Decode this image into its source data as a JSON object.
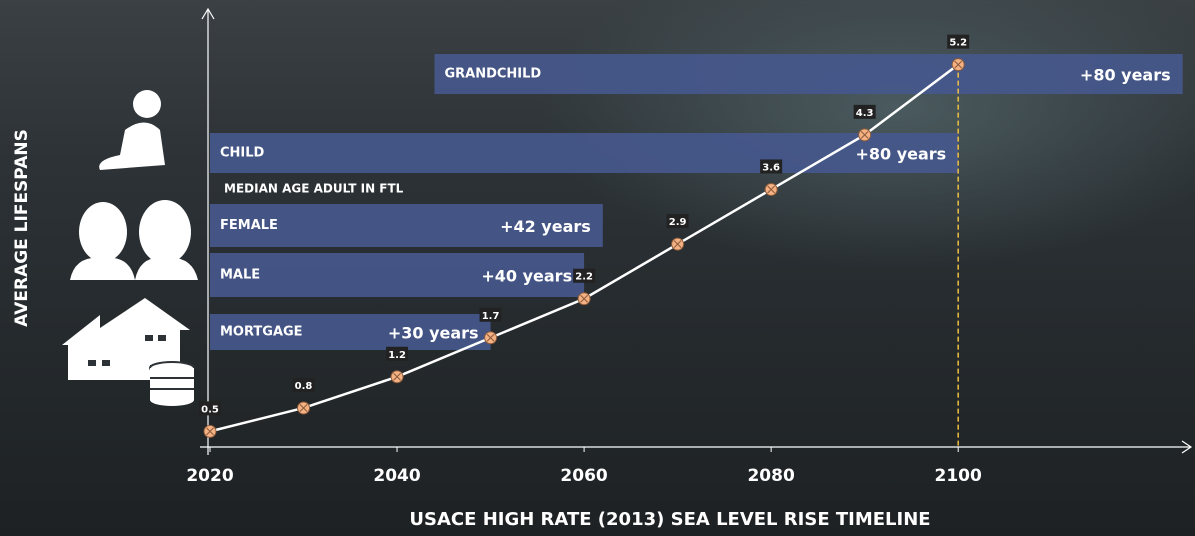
{
  "chart_data": {
    "type": "line",
    "x_label": "USACE HIGH RATE (2013) SEA LEVEL RISE TIMELINE",
    "y_label": "AVERAGE LIFESPANS",
    "note": "MEDIAN AGE ADULT IN FTL",
    "x": [
      2020,
      2030,
      2040,
      2050,
      2060,
      2070,
      2080,
      2090,
      2100
    ],
    "values": [
      0.5,
      0.8,
      1.2,
      1.7,
      2.2,
      2.9,
      3.6,
      4.3,
      5.2
    ],
    "color": "#ffffff",
    "marker_color": "#f4b183",
    "xlim": [
      2020,
      2125
    ],
    "xticks": [
      2020,
      2040,
      2060,
      2080,
      2100
    ],
    "ylim": [
      0.3,
      5.9
    ],
    "bars": [
      {
        "name": "GRANDCHILD",
        "start": 2044,
        "years": 80,
        "label": "+80 years"
      },
      {
        "name": "CHILD",
        "start": 2020,
        "years": 80,
        "label": "+80 years"
      },
      {
        "name": "FEMALE",
        "start": 2020,
        "years": 42,
        "label": "+42 years"
      },
      {
        "name": "MALE",
        "start": 2020,
        "years": 40,
        "label": "+40 years"
      },
      {
        "name": "MORTGAGE",
        "start": 2020,
        "years": 30,
        "label": "+30 years"
      }
    ],
    "bar_color": "#45588c"
  }
}
